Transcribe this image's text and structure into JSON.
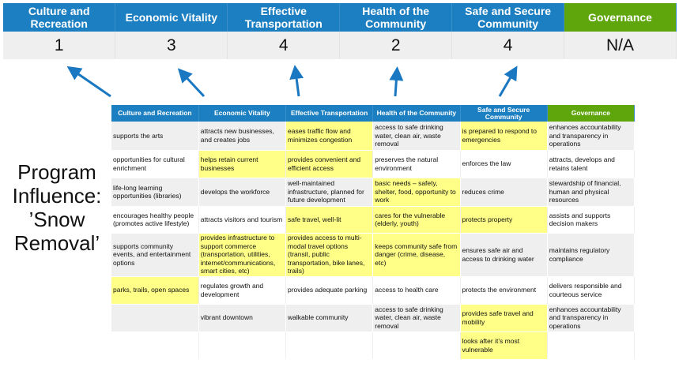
{
  "summary": {
    "columns": [
      {
        "label": "Culture and Recreation",
        "score": "1",
        "color": "#1c7fc1"
      },
      {
        "label": "Economic Vitality",
        "score": "3",
        "color": "#1c7fc1"
      },
      {
        "label": "Effective Transportation",
        "score": "4",
        "color": "#1c7fc1"
      },
      {
        "label": "Health of the Community",
        "score": "2",
        "color": "#1c7fc1"
      },
      {
        "label": "Safe and Secure Community",
        "score": "4",
        "color": "#1c7fc1"
      },
      {
        "label": "Governance",
        "score": "N/A",
        "color": "#5ea60c"
      }
    ]
  },
  "side_label": {
    "lines": [
      "Program",
      "Influence:",
      "’Snow",
      "Removal’"
    ]
  },
  "matrix": {
    "headers": [
      "Culture and Recreation",
      "Economic Vitality",
      "Effective Transportation",
      "Health of the Community",
      "Safe and Secure Community",
      "Governance"
    ],
    "highlight_color": "#ffff88",
    "rows": [
      {
        "cells": [
          "supports the arts",
          "attracts new businesses, and creates jobs",
          "eases traffic flow and minimizes congestion",
          "access to safe drinking water, clean air, waste removal",
          "is prepared to respond to emergencies",
          "enhances accountability and transparency in operations"
        ],
        "highlighted": [
          2,
          4
        ]
      },
      {
        "cells": [
          "opportunities for cultural enrichment",
          "helps retain current businesses",
          "provides convenient and efficient access",
          "preserves the natural environment",
          "enforces the law",
          "attracts, develops and retains talent"
        ],
        "highlighted": [
          1,
          2
        ]
      },
      {
        "cells": [
          "life-long learning opportunities (libraries)",
          "develops the workforce",
          "well-maintained infrastructure, planned for future development",
          "basic needs – safety, shelter, food, opportunity to work",
          "reduces crime",
          "stewardship of financial, human and physical resources"
        ],
        "highlighted": [
          3
        ]
      },
      {
        "cells": [
          "encourages healthy people (promotes active lifestyle)",
          "attracts visitors and tourism",
          "safe travel, well-lit",
          "cares for the vulnerable (elderly, youth)",
          "protects property",
          "assists and supports decision makers"
        ],
        "highlighted": [
          2,
          3,
          4
        ]
      },
      {
        "cells": [
          "supports community events, and entertainment options",
          "provides infrastructure to support commerce (transportation, utilities, internet/communications, smart cities, etc)",
          "provides access to multi-modal travel options (transit, public transportation, bike lanes, trails)",
          "keeps community safe from danger (crime, disease, etc)",
          "ensures safe air and access to drinking water",
          "maintains regulatory compliance"
        ],
        "highlighted": [
          1,
          2,
          3
        ]
      },
      {
        "cells": [
          "parks, trails, open spaces",
          "regulates growth and development",
          "provides adequate parking",
          "access to health care",
          "protects the environment",
          "delivers responsible and courteous service"
        ],
        "highlighted": [
          0
        ]
      },
      {
        "cells": [
          "",
          "vibrant downtown",
          "walkable community",
          "access to safe drinking water, clean air, waste removal",
          "provides safe travel and mobility",
          "enhances accountability and transparency in operations"
        ],
        "highlighted": [
          4
        ]
      },
      {
        "cells": [
          "",
          "",
          "",
          "",
          "looks after it’s most vulnerable",
          ""
        ],
        "highlighted": [
          4
        ]
      }
    ]
  }
}
